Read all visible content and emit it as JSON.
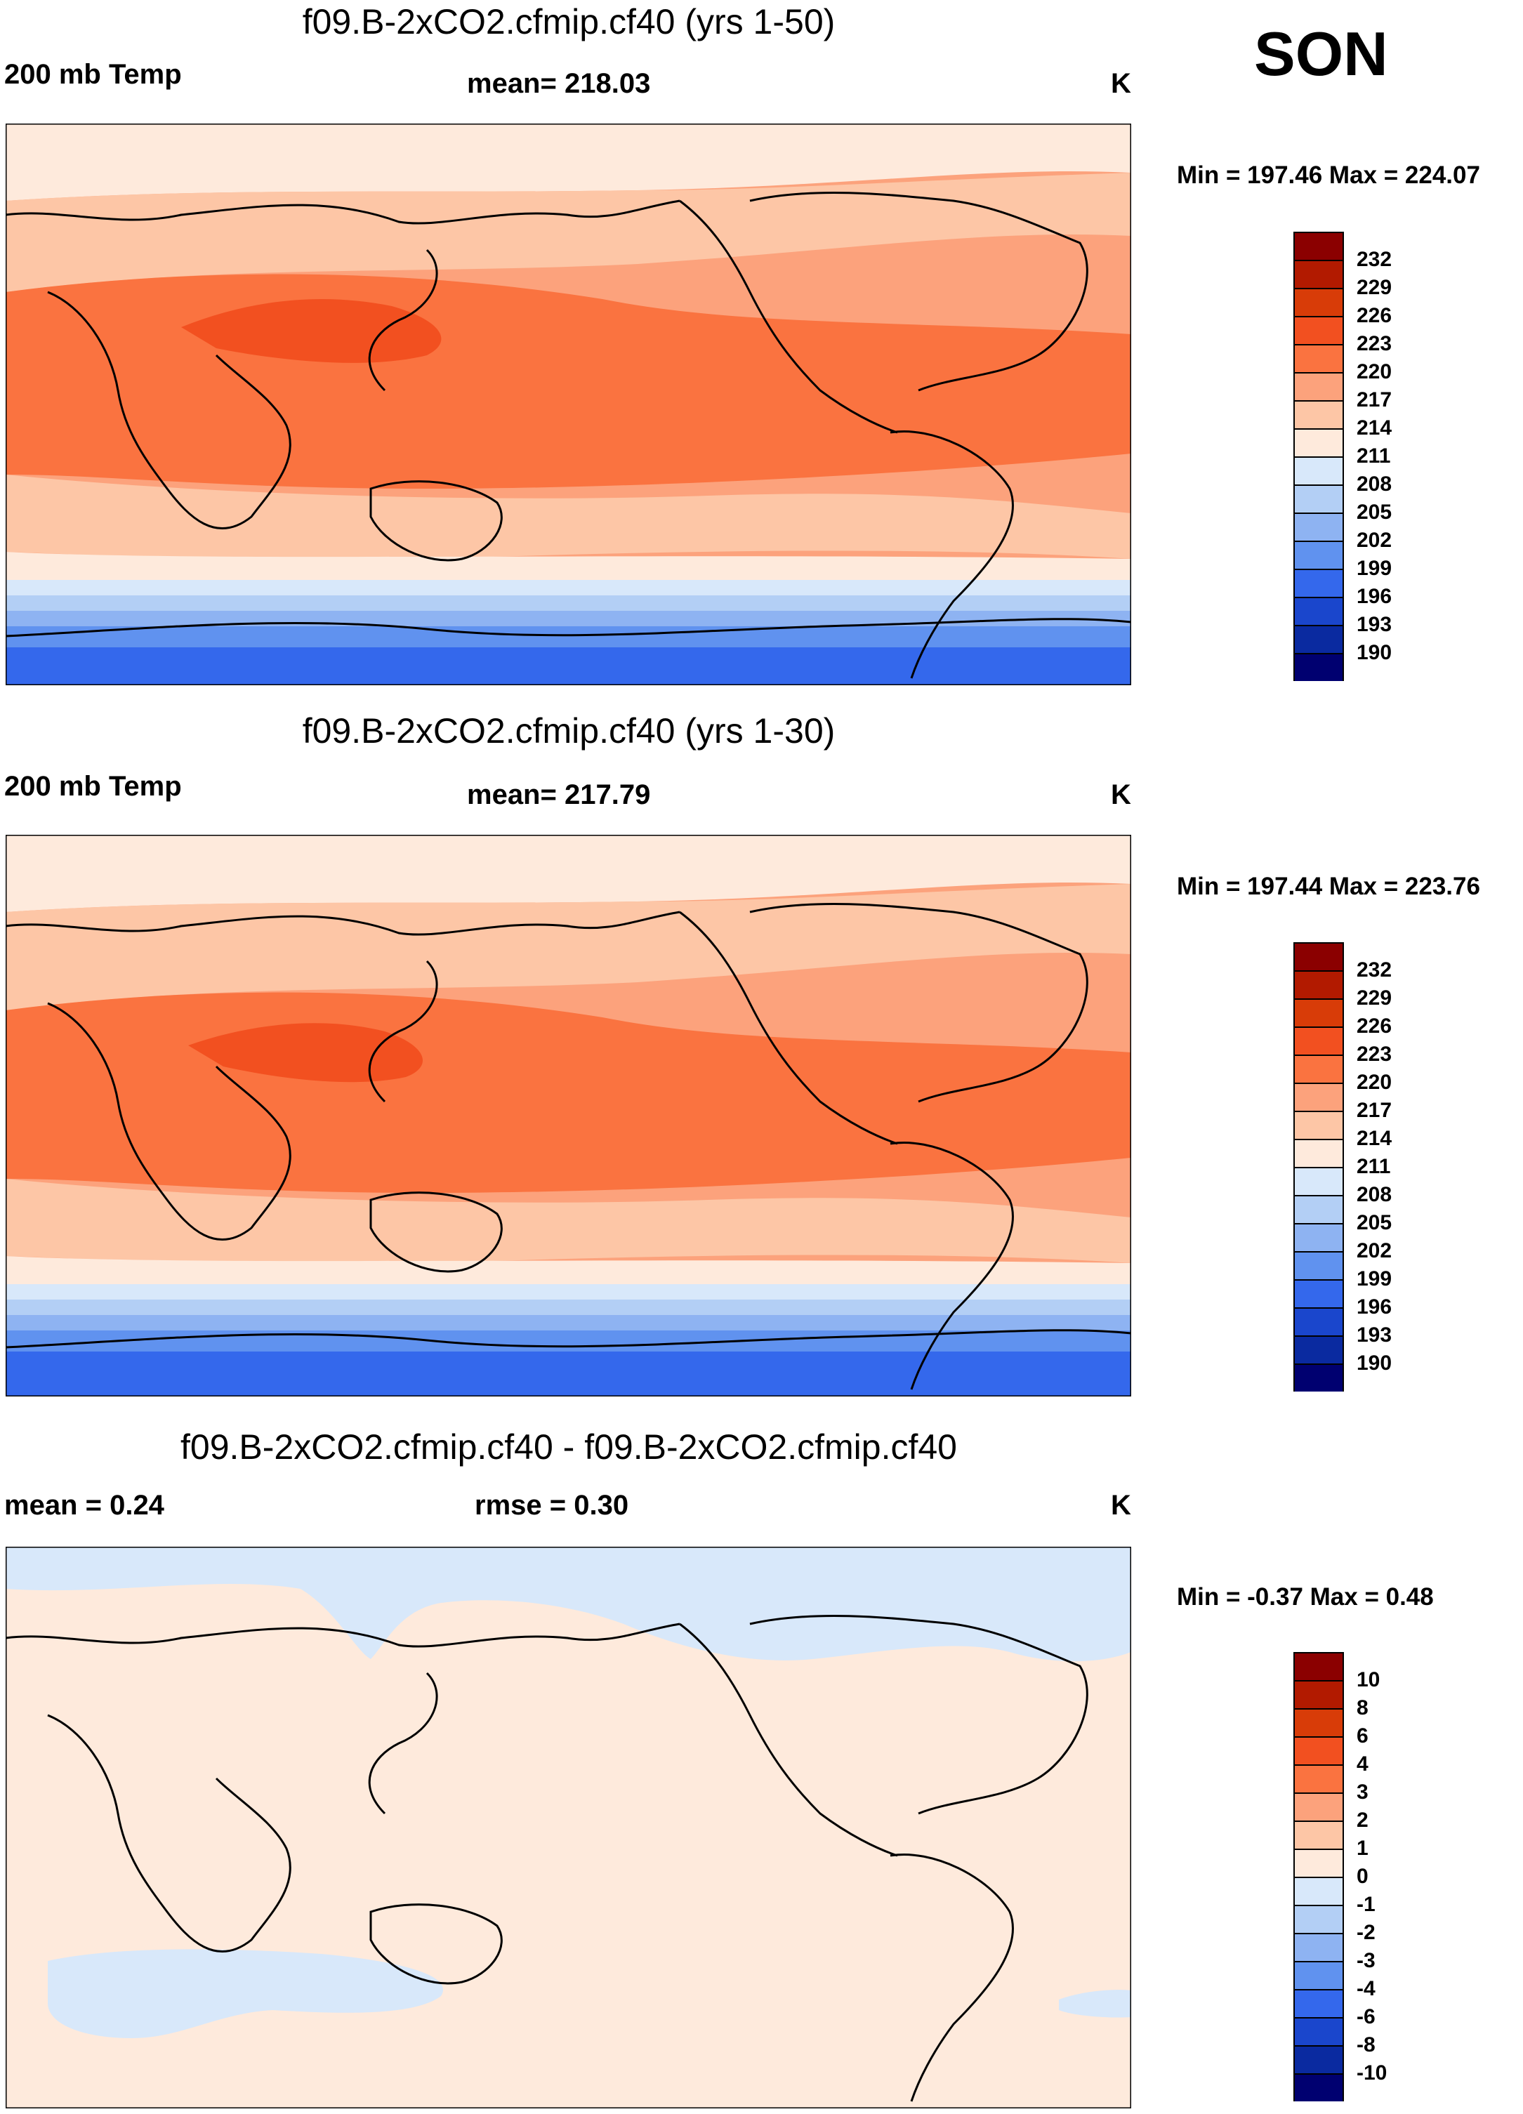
{
  "season": "SON",
  "panels": [
    {
      "title": "f09.B-2xCO2.cfmip.cf40 (yrs 1-50)",
      "left_label": "200 mb Temp",
      "center_label": "mean= 218.03",
      "units": "K",
      "minmax": "Min = 197.46 Max = 224.07",
      "legend_labels": [
        "232",
        "229",
        "226",
        "223",
        "220",
        "217",
        "214",
        "211",
        "208",
        "205",
        "202",
        "199",
        "196",
        "193",
        "190"
      ],
      "legend_colors": [
        "#8b0000",
        "#b21a00",
        "#d83c08",
        "#f25020",
        "#fa7340",
        "#fca27c",
        "#fdc6a6",
        "#feeadc",
        "#d8e8fa",
        "#b3cff5",
        "#8eb3f2",
        "#6092ef",
        "#3468ec",
        "#1a46cc",
        "#0a2aa0",
        "#000070"
      ]
    },
    {
      "title": "f09.B-2xCO2.cfmip.cf40 (yrs 1-30)",
      "left_label": "200 mb Temp",
      "center_label": "mean= 217.79",
      "units": "K",
      "minmax": "Min = 197.44 Max = 223.76",
      "legend_labels": [
        "232",
        "229",
        "226",
        "223",
        "220",
        "217",
        "214",
        "211",
        "208",
        "205",
        "202",
        "199",
        "196",
        "193",
        "190"
      ],
      "legend_colors": [
        "#8b0000",
        "#b21a00",
        "#d83c08",
        "#f25020",
        "#fa7340",
        "#fca27c",
        "#fdc6a6",
        "#feeadc",
        "#d8e8fa",
        "#b3cff5",
        "#8eb3f2",
        "#6092ef",
        "#3468ec",
        "#1a46cc",
        "#0a2aa0",
        "#000070"
      ]
    },
    {
      "title": "f09.B-2xCO2.cfmip.cf40 - f09.B-2xCO2.cfmip.cf40",
      "left_label": "mean =   0.24",
      "center_label": "rmse =   0.30",
      "units": "K",
      "minmax": "Min =  -0.37 Max =   0.48",
      "legend_labels": [
        "10",
        "8",
        "6",
        "4",
        "3",
        "2",
        "1",
        "0",
        "-1",
        "-2",
        "-3",
        "-4",
        "-6",
        "-8",
        "-10"
      ],
      "legend_colors": [
        "#8b0000",
        "#b21a00",
        "#d83c08",
        "#f25020",
        "#fa7340",
        "#fca27c",
        "#fdc6a6",
        "#feeadc",
        "#d8e8fa",
        "#b3cff5",
        "#8eb3f2",
        "#6092ef",
        "#3468ec",
        "#1a46cc",
        "#0a2aa0",
        "#000070"
      ]
    }
  ],
  "chart_data": [
    {
      "type": "heatmap",
      "title": "f09.B-2xCO2.cfmip.cf40 (yrs 1-50)",
      "variable": "200 mb Temp",
      "units": "K",
      "mean": 218.03,
      "min": 197.46,
      "max": 224.07,
      "contour_levels": [
        190,
        193,
        196,
        199,
        202,
        205,
        208,
        211,
        214,
        217,
        220,
        223,
        226,
        229,
        232
      ]
    },
    {
      "type": "heatmap",
      "title": "f09.B-2xCO2.cfmip.cf40 (yrs 1-30)",
      "variable": "200 mb Temp",
      "units": "K",
      "mean": 217.79,
      "min": 197.44,
      "max": 223.76,
      "contour_levels": [
        190,
        193,
        196,
        199,
        202,
        205,
        208,
        211,
        214,
        217,
        220,
        223,
        226,
        229,
        232
      ]
    },
    {
      "type": "heatmap",
      "title": "f09.B-2xCO2.cfmip.cf40 - f09.B-2xCO2.cfmip.cf40",
      "units": "K",
      "mean": 0.24,
      "rmse": 0.3,
      "min": -0.37,
      "max": 0.48,
      "contour_levels": [
        -10,
        -8,
        -6,
        -4,
        -3,
        -2,
        -1,
        0,
        1,
        2,
        3,
        4,
        6,
        8,
        10
      ]
    }
  ]
}
